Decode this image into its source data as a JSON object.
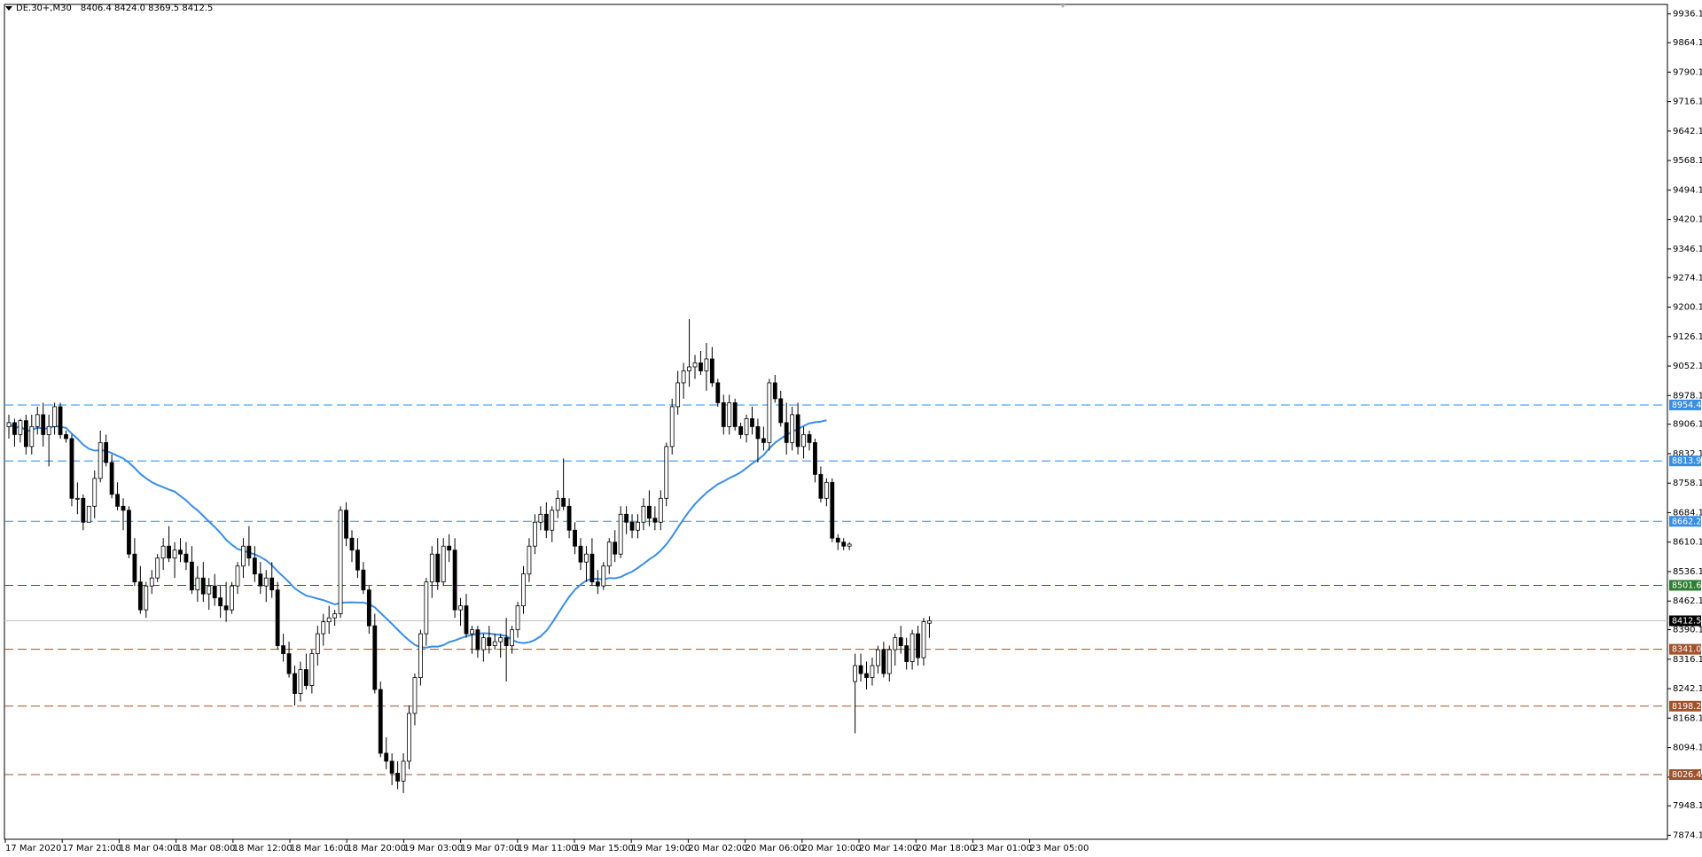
{
  "header": {
    "symbol": "DE.30+,M30",
    "ohlc": "8406.4 8424.0 8369.5 8412.5"
  },
  "price_axis": {
    "ticks": [
      "9936.1",
      "9864.1",
      "9790.1",
      "9716.1",
      "9642.1",
      "9568.1",
      "9494.1",
      "9420.1",
      "9346.1",
      "9274.1",
      "9200.1",
      "9126.1",
      "9052.1",
      "8978.1",
      "8906.1",
      "8832.1",
      "8758.1",
      "8684.1",
      "8610.1",
      "8536.1",
      "8462.1",
      "8390.1",
      "8316.1",
      "8242.1",
      "8168.1",
      "8094.1",
      "8020.1",
      "7948.1",
      "7874.1"
    ],
    "current_price": "8412.5"
  },
  "time_axis": {
    "labels": [
      "17 Mar 2020",
      "17 Mar 21:00",
      "18 Mar 04:00",
      "18 Mar 08:00",
      "18 Mar 12:00",
      "18 Mar 16:00",
      "18 Mar 20:00",
      "19 Mar 03:00",
      "19 Mar 07:00",
      "19 Mar 11:00",
      "19 Mar 15:00",
      "19 Mar 19:00",
      "20 Mar 02:00",
      "20 Mar 06:00",
      "20 Mar 10:00",
      "20 Mar 14:00",
      "20 Mar 18:00",
      "23 Mar 01:00",
      "23 Mar 05:00"
    ]
  },
  "levels": [
    {
      "value": 8954.4,
      "label": "8954.4",
      "color": "#1e90ff"
    },
    {
      "value": 8813.9,
      "label": "8813.9",
      "color": "#1e90ff"
    },
    {
      "value": 8662.2,
      "label": "8662.2",
      "color": "#1e90ff"
    },
    {
      "value": 8501.6,
      "label": "8501.6",
      "color": "#008000"
    },
    {
      "value": 8341.0,
      "label": "8341.0",
      "color": "#a0522d"
    },
    {
      "value": 8198.2,
      "label": "8198.2",
      "color": "#a0522d"
    },
    {
      "value": 8026.4,
      "label": "8026.4",
      "color": "#a0522d"
    }
  ],
  "colors": {
    "bull": "#ffffff",
    "bear": "#000000",
    "ma": "#3a8ee6",
    "current_line": "#c0c0c0",
    "label_blue": "#3a8ee6",
    "label_green": "#2e7d32",
    "label_brown": "#a0522d",
    "current_label": "#000000"
  },
  "chart_data": {
    "type": "candlestick",
    "title": "DE.30+,M30",
    "ylim": [
      7874.1,
      9960
    ],
    "candles": [
      [
        8900,
        8930,
        8870,
        8910
      ],
      [
        8910,
        8920,
        8850,
        8880
      ],
      [
        8880,
        8920,
        8860,
        8915
      ],
      [
        8915,
        8930,
        8830,
        8850
      ],
      [
        8850,
        8930,
        8830,
        8900
      ],
      [
        8900,
        8950,
        8880,
        8930
      ],
      [
        8930,
        8960,
        8850,
        8880
      ],
      [
        8880,
        8930,
        8800,
        8900
      ],
      [
        8900,
        8960,
        8880,
        8950
      ],
      [
        8950,
        8960,
        8870,
        8880
      ],
      [
        8880,
        8890,
        8860,
        8870
      ],
      [
        8870,
        8880,
        8700,
        8720
      ],
      [
        8720,
        8760,
        8680,
        8720
      ],
      [
        8720,
        8730,
        8640,
        8660
      ],
      [
        8660,
        8700,
        8660,
        8700
      ],
      [
        8700,
        8790,
        8670,
        8770
      ],
      [
        8770,
        8890,
        8760,
        8860
      ],
      [
        8860,
        8880,
        8800,
        8810
      ],
      [
        8810,
        8830,
        8720,
        8730
      ],
      [
        8730,
        8760,
        8690,
        8700
      ],
      [
        8700,
        8720,
        8640,
        8690
      ],
      [
        8690,
        8700,
        8570,
        8580
      ],
      [
        8580,
        8620,
        8500,
        8510
      ],
      [
        8510,
        8550,
        8430,
        8440
      ],
      [
        8440,
        8510,
        8420,
        8500
      ],
      [
        8500,
        8540,
        8480,
        8520
      ],
      [
        8520,
        8580,
        8510,
        8570
      ],
      [
        8570,
        8620,
        8540,
        8600
      ],
      [
        8600,
        8650,
        8560,
        8570
      ],
      [
        8570,
        8610,
        8520,
        8590
      ],
      [
        8590,
        8620,
        8560,
        8580
      ],
      [
        8580,
        8610,
        8540,
        8560
      ],
      [
        8560,
        8600,
        8480,
        8490
      ],
      [
        8490,
        8550,
        8460,
        8520
      ],
      [
        8520,
        8560,
        8460,
        8480
      ],
      [
        8480,
        8520,
        8440,
        8500
      ],
      [
        8500,
        8530,
        8450,
        8470
      ],
      [
        8470,
        8500,
        8420,
        8450
      ],
      [
        8450,
        8510,
        8410,
        8440
      ],
      [
        8440,
        8510,
        8430,
        8500
      ],
      [
        8500,
        8560,
        8480,
        8550
      ],
      [
        8550,
        8620,
        8520,
        8600
      ],
      [
        8600,
        8650,
        8550,
        8570
      ],
      [
        8570,
        8600,
        8510,
        8530
      ],
      [
        8530,
        8560,
        8480,
        8500
      ],
      [
        8500,
        8540,
        8460,
        8520
      ],
      [
        8520,
        8560,
        8470,
        8490
      ],
      [
        8490,
        8510,
        8340,
        8350
      ],
      [
        8350,
        8380,
        8310,
        8330
      ],
      [
        8330,
        8360,
        8270,
        8280
      ],
      [
        8280,
        8300,
        8200,
        8230
      ],
      [
        8230,
        8310,
        8210,
        8290
      ],
      [
        8290,
        8330,
        8240,
        8250
      ],
      [
        8250,
        8340,
        8230,
        8330
      ],
      [
        8330,
        8400,
        8300,
        8380
      ],
      [
        8380,
        8430,
        8350,
        8410
      ],
      [
        8410,
        8450,
        8380,
        8420
      ],
      [
        8420,
        8440,
        8400,
        8430
      ],
      [
        8430,
        8700,
        8420,
        8690
      ],
      [
        8690,
        8710,
        8600,
        8620
      ],
      [
        8620,
        8640,
        8560,
        8590
      ],
      [
        8590,
        8620,
        8520,
        8540
      ],
      [
        8540,
        8560,
        8480,
        8490
      ],
      [
        8490,
        8500,
        8380,
        8400
      ],
      [
        8400,
        8430,
        8230,
        8240
      ],
      [
        8240,
        8260,
        8070,
        8080
      ],
      [
        8080,
        8120,
        8040,
        8060
      ],
      [
        8060,
        8080,
        8000,
        8030
      ],
      [
        8030,
        8060,
        7990,
        8010
      ],
      [
        8010,
        8080,
        7980,
        8060
      ],
      [
        8060,
        8200,
        8040,
        8180
      ],
      [
        8180,
        8280,
        8150,
        8270
      ],
      [
        8270,
        8390,
        8250,
        8380
      ],
      [
        8380,
        8520,
        8350,
        8510
      ],
      [
        8510,
        8600,
        8470,
        8580
      ],
      [
        8580,
        8620,
        8490,
        8510
      ],
      [
        8510,
        8620,
        8500,
        8600
      ],
      [
        8600,
        8630,
        8560,
        8590
      ],
      [
        8590,
        8620,
        8420,
        8440
      ],
      [
        8440,
        8470,
        8400,
        8450
      ],
      [
        8450,
        8480,
        8370,
        8380
      ],
      [
        8380,
        8400,
        8330,
        8390
      ],
      [
        8390,
        8400,
        8320,
        8340
      ],
      [
        8340,
        8380,
        8310,
        8370
      ],
      [
        8370,
        8400,
        8330,
        8350
      ],
      [
        8350,
        8380,
        8340,
        8360
      ],
      [
        8360,
        8380,
        8320,
        8370
      ],
      [
        8370,
        8420,
        8260,
        8350
      ],
      [
        8350,
        8400,
        8330,
        8390
      ],
      [
        8390,
        8460,
        8370,
        8450
      ],
      [
        8450,
        8550,
        8430,
        8530
      ],
      [
        8530,
        8620,
        8510,
        8600
      ],
      [
        8600,
        8680,
        8580,
        8660
      ],
      [
        8660,
        8700,
        8640,
        8680
      ],
      [
        8680,
        8710,
        8620,
        8640
      ],
      [
        8640,
        8700,
        8610,
        8690
      ],
      [
        8690,
        8740,
        8670,
        8720
      ],
      [
        8720,
        8820,
        8690,
        8700
      ],
      [
        8700,
        8720,
        8620,
        8640
      ],
      [
        8640,
        8660,
        8580,
        8600
      ],
      [
        8600,
        8620,
        8540,
        8560
      ],
      [
        8560,
        8600,
        8510,
        8580
      ],
      [
        8580,
        8620,
        8500,
        8510
      ],
      [
        8510,
        8540,
        8480,
        8500
      ],
      [
        8500,
        8560,
        8490,
        8550
      ],
      [
        8550,
        8620,
        8530,
        8610
      ],
      [
        8610,
        8640,
        8560,
        8580
      ],
      [
        8580,
        8700,
        8570,
        8680
      ],
      [
        8680,
        8700,
        8630,
        8660
      ],
      [
        8660,
        8680,
        8620,
        8640
      ],
      [
        8640,
        8680,
        8620,
        8660
      ],
      [
        8660,
        8720,
        8640,
        8700
      ],
      [
        8700,
        8740,
        8650,
        8670
      ],
      [
        8670,
        8700,
        8640,
        8660
      ],
      [
        8660,
        8740,
        8640,
        8720
      ],
      [
        8720,
        8860,
        8700,
        8850
      ],
      [
        8850,
        8970,
        8830,
        8950
      ],
      [
        8950,
        9040,
        8930,
        9010
      ],
      [
        9010,
        9060,
        8970,
        9040
      ],
      [
        9040,
        9170,
        9000,
        9050
      ],
      [
        9050,
        9080,
        9020,
        9060
      ],
      [
        9060,
        9090,
        9030,
        9040
      ],
      [
        9040,
        9110,
        8990,
        9070
      ],
      [
        9070,
        9100,
        9000,
        9010
      ],
      [
        9010,
        9020,
        8950,
        8960
      ],
      [
        8960,
        8980,
        8880,
        8900
      ],
      [
        8900,
        8980,
        8880,
        8960
      ],
      [
        8960,
        8970,
        8890,
        8900
      ],
      [
        8900,
        8910,
        8870,
        8880
      ],
      [
        8880,
        8930,
        8860,
        8920
      ],
      [
        8920,
        8950,
        8880,
        8900
      ],
      [
        8900,
        8920,
        8810,
        8870
      ],
      [
        8870,
        8900,
        8840,
        8860
      ],
      [
        8860,
        9020,
        8840,
        9010
      ],
      [
        9010,
        9030,
        8960,
        8970
      ],
      [
        8970,
        8990,
        8900,
        8910
      ],
      [
        8910,
        8960,
        8830,
        8860
      ],
      [
        8860,
        8950,
        8840,
        8930
      ],
      [
        8930,
        8960,
        8830,
        8850
      ],
      [
        8850,
        8900,
        8820,
        8880
      ],
      [
        8880,
        8890,
        8840,
        8860
      ],
      [
        8860,
        8870,
        8760,
        8780
      ],
      [
        8780,
        8800,
        8710,
        8720
      ],
      [
        8720,
        8770,
        8700,
        8760
      ],
      [
        8760,
        8770,
        8610,
        8620
      ],
      [
        8620,
        8630,
        8590,
        8610
      ],
      [
        8610,
        8620,
        8590,
        8600
      ],
      [
        8600,
        8610,
        8590,
        8605
      ],
      [
        8260,
        8330,
        8130,
        8300
      ],
      [
        8300,
        8330,
        8260,
        8280
      ],
      [
        8280,
        8310,
        8240,
        8270
      ],
      [
        8270,
        8320,
        8250,
        8300
      ],
      [
        8300,
        8350,
        8280,
        8340
      ],
      [
        8340,
        8360,
        8270,
        8280
      ],
      [
        8280,
        8350,
        8260,
        8340
      ],
      [
        8340,
        8380,
        8300,
        8370
      ],
      [
        8370,
        8400,
        8330,
        8350
      ],
      [
        8350,
        8370,
        8290,
        8310
      ],
      [
        8310,
        8390,
        8290,
        8380
      ],
      [
        8380,
        8400,
        8300,
        8320
      ],
      [
        8320,
        8420,
        8300,
        8410
      ],
      [
        8406.4,
        8424.0,
        8369.5,
        8412.5
      ]
    ]
  }
}
